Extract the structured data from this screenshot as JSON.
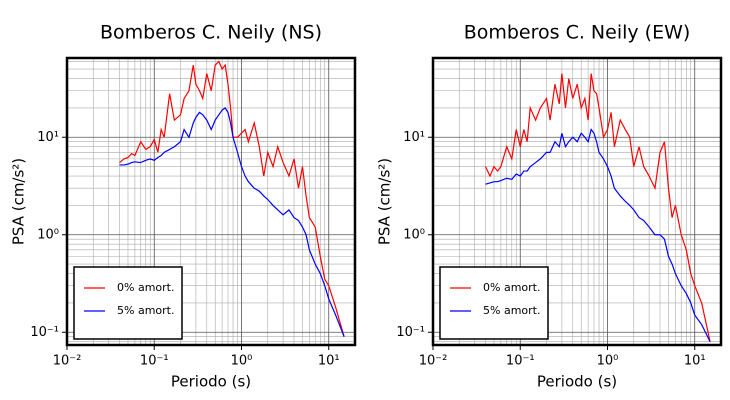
{
  "chart_data": [
    {
      "type": "line",
      "title": "Bomberos C. Neily (NS)",
      "x_label": "Periodo (s)",
      "y_label": "PSA (cm/s²)",
      "x_scale": "log",
      "y_scale": "log",
      "grid": true,
      "legend": "lower left",
      "xlim": [
        0.01,
        20
      ],
      "ylim": [
        0.074,
        65
      ],
      "xticks": [
        {
          "value": 0.01,
          "label": "10⁻²"
        },
        {
          "value": 0.1,
          "label": "10⁻¹"
        },
        {
          "value": 1,
          "label": "10⁰"
        },
        {
          "value": 10,
          "label": "10¹"
        }
      ],
      "yticks": [
        {
          "value": 0.1,
          "label": "10⁻¹"
        },
        {
          "value": 1,
          "label": "10⁰"
        },
        {
          "value": 10,
          "label": "10¹"
        }
      ],
      "x": [
        0.04,
        0.045,
        0.05,
        0.055,
        0.06,
        0.07,
        0.08,
        0.09,
        0.1,
        0.11,
        0.12,
        0.13,
        0.15,
        0.17,
        0.2,
        0.22,
        0.25,
        0.28,
        0.3,
        0.33,
        0.36,
        0.4,
        0.45,
        0.5,
        0.55,
        0.6,
        0.65,
        0.7,
        0.75,
        0.8,
        0.9,
        1.0,
        1.1,
        1.2,
        1.4,
        1.6,
        1.8,
        2.0,
        2.3,
        2.6,
        3.0,
        3.5,
        4.0,
        4.5,
        5.0,
        5.5,
        6.0,
        7.0,
        8.0,
        9.0,
        10,
        12,
        15
      ],
      "series": [
        {
          "name": "0% amort.",
          "color": "#ff0000",
          "values": [
            5.5,
            6,
            6.2,
            6.8,
            6.5,
            9,
            7.5,
            8,
            9.5,
            7,
            12,
            10,
            28,
            15,
            17,
            25,
            30,
            55,
            35,
            30,
            25,
            45,
            30,
            55,
            60,
            50,
            55,
            35,
            20,
            10,
            10,
            11,
            12,
            9,
            14,
            8,
            4,
            7,
            5,
            8,
            5.5,
            4,
            6,
            3,
            5,
            2.5,
            1.5,
            1.2,
            0.6,
            0.35,
            0.3,
            0.18,
            0.09
          ]
        },
        {
          "name": "5% amort.",
          "color": "#0000ff",
          "values": [
            5.2,
            5.2,
            5.3,
            5.5,
            5.6,
            5.5,
            5.8,
            6,
            5.8,
            6.2,
            6.5,
            7,
            7.5,
            8,
            9,
            12,
            10,
            14,
            16,
            18,
            17,
            15,
            12,
            15,
            17,
            19,
            20,
            18,
            14,
            10,
            7,
            5,
            4,
            3.5,
            3,
            2.8,
            2.5,
            2.3,
            2.0,
            1.8,
            1.6,
            1.8,
            1.5,
            1.4,
            1.2,
            1.0,
            0.7,
            0.5,
            0.4,
            0.3,
            0.22,
            0.15,
            0.09
          ]
        }
      ]
    },
    {
      "type": "line",
      "title": "Bomberos C. Neily (EW)",
      "x_label": "Periodo (s)",
      "y_label": "PSA (cm/s²)",
      "x_scale": "log",
      "y_scale": "log",
      "grid": true,
      "legend": "lower left",
      "xlim": [
        0.01,
        20
      ],
      "ylim": [
        0.074,
        65
      ],
      "xticks": [
        {
          "value": 0.01,
          "label": "10⁻²"
        },
        {
          "value": 0.1,
          "label": "10⁻¹"
        },
        {
          "value": 1,
          "label": "10⁰"
        },
        {
          "value": 10,
          "label": "10¹"
        }
      ],
      "yticks": [
        {
          "value": 0.1,
          "label": "10⁻¹"
        },
        {
          "value": 1,
          "label": "10⁰"
        },
        {
          "value": 10,
          "label": "10¹"
        }
      ],
      "x": [
        0.04,
        0.045,
        0.05,
        0.055,
        0.06,
        0.07,
        0.08,
        0.09,
        0.1,
        0.11,
        0.12,
        0.13,
        0.15,
        0.17,
        0.2,
        0.22,
        0.25,
        0.28,
        0.3,
        0.33,
        0.36,
        0.4,
        0.45,
        0.5,
        0.55,
        0.6,
        0.65,
        0.7,
        0.75,
        0.8,
        0.9,
        1.0,
        1.1,
        1.2,
        1.4,
        1.6,
        1.8,
        2.0,
        2.3,
        2.6,
        3.0,
        3.5,
        4.0,
        4.5,
        5.0,
        5.5,
        6.0,
        7.0,
        8.0,
        9.0,
        10,
        12,
        15
      ],
      "series": [
        {
          "name": "0% amort.",
          "color": "#ff0000",
          "values": [
            5,
            4,
            5,
            4.5,
            5,
            8,
            6,
            12,
            8,
            12,
            9,
            20,
            15,
            20,
            25,
            15,
            35,
            22,
            45,
            20,
            40,
            25,
            35,
            20,
            25,
            15,
            45,
            30,
            28,
            20,
            10,
            12,
            18,
            8,
            15,
            12,
            10,
            5,
            8,
            5,
            4,
            3,
            7,
            9,
            3,
            1.5,
            2.0,
            1.0,
            0.7,
            0.4,
            0.3,
            0.2,
            0.08
          ]
        },
        {
          "name": "5% amort.",
          "color": "#0000ff",
          "values": [
            3.3,
            3.4,
            3.5,
            3.5,
            3.6,
            3.8,
            3.7,
            4.2,
            4.0,
            4.5,
            4.5,
            5,
            5.5,
            6,
            7,
            7,
            9,
            8,
            11,
            8,
            9,
            10,
            9,
            11,
            10,
            9,
            12,
            11,
            9,
            7,
            6,
            5,
            4,
            3,
            2.5,
            2.2,
            2.0,
            1.8,
            1.5,
            1.4,
            1.2,
            1.0,
            1.0,
            0.9,
            0.6,
            0.5,
            0.4,
            0.3,
            0.25,
            0.2,
            0.15,
            0.12,
            0.08
          ]
        }
      ]
    }
  ]
}
